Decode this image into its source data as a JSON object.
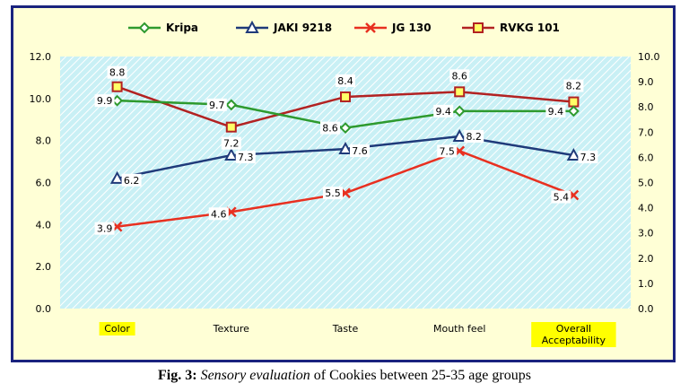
{
  "chart_data": {
    "type": "line",
    "categories": [
      "Color",
      "Texture",
      "Taste",
      "Mouth feel",
      "Overall Acceptability"
    ],
    "highlighted_categories": [
      "Color",
      "Overall Acceptability"
    ],
    "highlight_color": "#ffff00",
    "y_left_lim": [
      0,
      12
    ],
    "y_left_ticks": [
      "0.0",
      "2.0",
      "4.0",
      "6.0",
      "8.0",
      "10.0",
      "12.0"
    ],
    "y_right_lim": [
      0,
      10
    ],
    "y_right_ticks": [
      "0.0",
      "1.0",
      "2.0",
      "3.0",
      "4.0",
      "5.0",
      "6.0",
      "7.0",
      "8.0",
      "9.0",
      "10.0"
    ],
    "grid": false,
    "plot_background": "#c9f0f5",
    "legend_position": "top",
    "series": [
      {
        "name": "Kripa",
        "axis": "left",
        "color": "#2e9a2e",
        "marker": "diamond",
        "values": [
          9.9,
          9.7,
          8.6,
          9.4,
          9.4
        ],
        "labels": [
          "9.9",
          "9.7",
          "8.6",
          "9.4",
          "9.4"
        ]
      },
      {
        "name": "JAKI 9218",
        "axis": "left",
        "color": "#1f3a7a",
        "marker": "triangle",
        "values": [
          6.2,
          7.3,
          7.6,
          8.2,
          7.3
        ],
        "labels": [
          "6.2",
          "7.3",
          "7.6",
          "8.2",
          "7.3"
        ]
      },
      {
        "name": "JG 130",
        "axis": "left",
        "color": "#e83020",
        "marker": "x",
        "values": [
          3.9,
          4.6,
          5.5,
          7.5,
          5.4
        ],
        "labels": [
          "3.9",
          "4.6",
          "5.5",
          "7.5",
          "5.4"
        ]
      },
      {
        "name": "RVKG 101",
        "axis": "right",
        "color": "#b22222",
        "marker": "square",
        "values": [
          8.8,
          7.2,
          8.4,
          8.6,
          8.2
        ],
        "labels": [
          "8.8",
          "7.2",
          "8.4",
          "8.6",
          "8.2"
        ]
      }
    ]
  },
  "caption": {
    "prefix": "Fig. 3:",
    "italic": "Sensory evaluation",
    "rest": " of Cookies between 25-35 age groups"
  }
}
